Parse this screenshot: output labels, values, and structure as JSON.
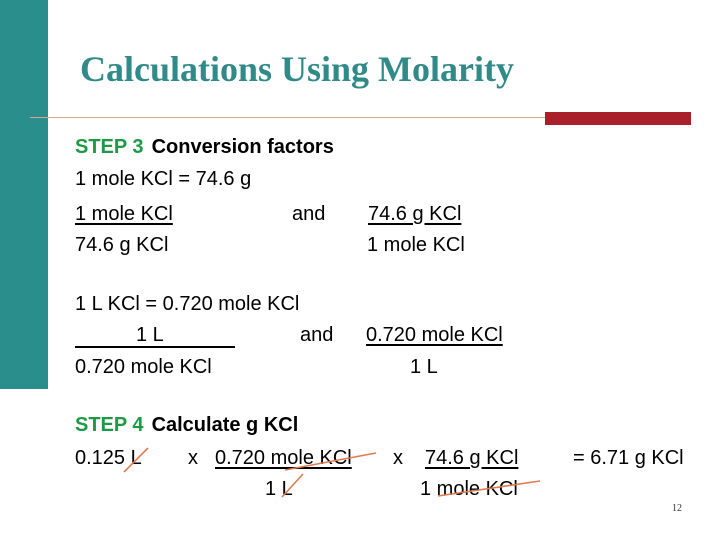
{
  "title": "Calculations Using Molarity",
  "step3": {
    "label": "STEP 3",
    "desc": "Conversion factors"
  },
  "eq1": "1 mole KCl = 74.6 g",
  "cf1": {
    "num_left": "1 mole KCl",
    "and": "and",
    "num_right": "74.6 g KCl",
    "den_left": "74.6 g KCl",
    "den_right": "1 mole KCl"
  },
  "eq2": "1 L KCl = 0.720 mole KCl",
  "cf2": {
    "num_left": "1 L",
    "and": "and",
    "num_right": "0.720 mole KCl",
    "den_left": "0.720 mole KCl",
    "den_right": "1 L"
  },
  "step4": {
    "label": "STEP 4",
    "desc": "Calculate g KCl"
  },
  "calc": {
    "start": "0.125 L",
    "times1": "x",
    "factor1_num": "0.720 mole KCl",
    "times2": "x",
    "factor2_num": "74.6 g KCl",
    "result": "= 6.71 g KCl",
    "factor1_den": "1 L",
    "factor2_den": "1 mole KCl"
  },
  "page_number": "12",
  "colors": {
    "teal": "#2a8f8c",
    "title": "#2f8a88",
    "step": "#1c9a44",
    "red_block": "#a8202a",
    "cancel_mark": "#e07a50"
  }
}
